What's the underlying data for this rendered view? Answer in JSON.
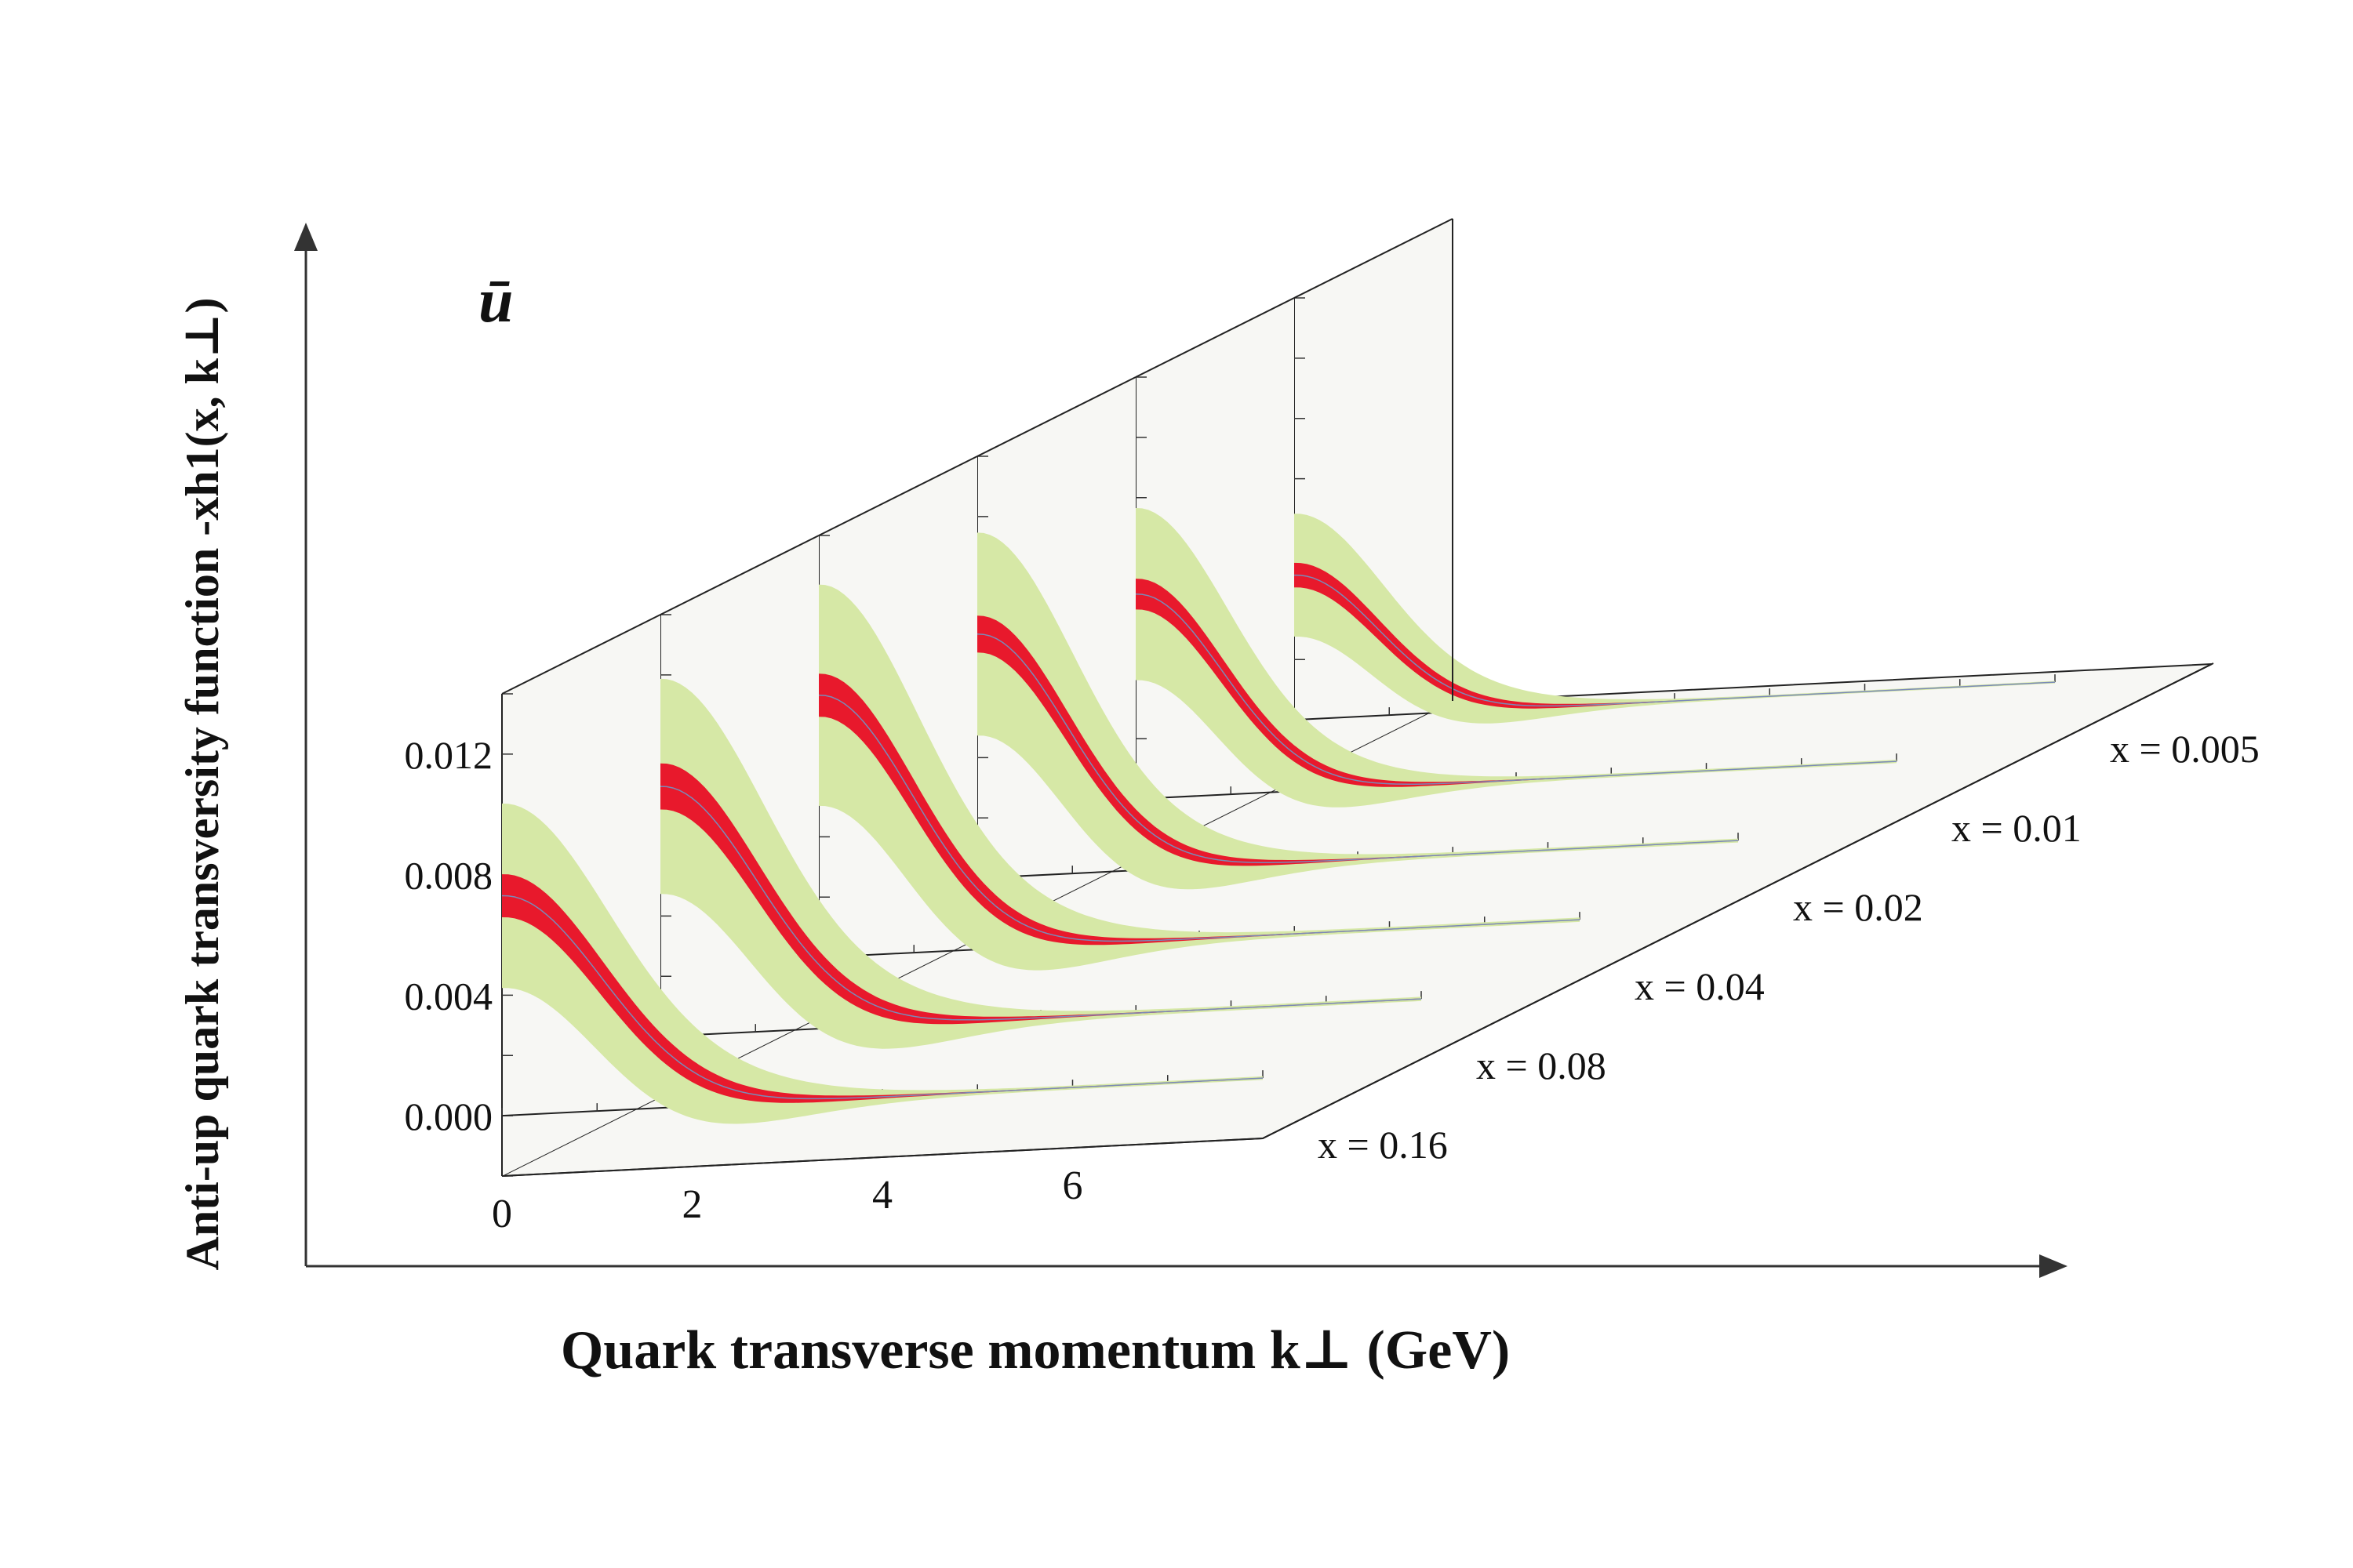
{
  "chart_data": {
    "type": "area",
    "subtitle": "ū",
    "xlabel": "Quark transverse momentum k⊥ (GeV)",
    "ylabel": "Anti-up quark transversity function -xh1(x, k⊥)",
    "x_ticks": [
      "0",
      "2",
      "4",
      "6"
    ],
    "x_range": [
      0,
      8
    ],
    "y_ticks": [
      "0.000",
      "0.004",
      "0.008",
      "0.012"
    ],
    "y_range": [
      -0.002,
      0.014
    ],
    "grid": false,
    "colors": {
      "central_band": "#e8192c",
      "uncertainty_band": "#d6e8a6",
      "center_line": "#7a8ab8",
      "panel": "#f7f7f4"
    },
    "series": [
      {
        "name": "x = 0.16",
        "peak": 0.0073,
        "red_half": 0.0007,
        "green_half": 0.003,
        "width": 1.5
      },
      {
        "name": "x = 0.08",
        "peak": 0.0083,
        "red_half": 0.00075,
        "green_half": 0.0035,
        "width": 1.45
      },
      {
        "name": "x = 0.04",
        "peak": 0.0087,
        "red_half": 0.0007,
        "green_half": 0.0036,
        "width": 1.4
      },
      {
        "name": "x = 0.02",
        "peak": 0.0081,
        "red_half": 0.0006,
        "green_half": 0.0033,
        "width": 1.35
      },
      {
        "name": "x = 0.01",
        "peak": 0.0068,
        "red_half": 0.0005,
        "green_half": 0.0028,
        "width": 1.3
      },
      {
        "name": "x = 0.005",
        "peak": 0.0048,
        "red_half": 0.0004,
        "green_half": 0.002,
        "width": 1.25
      }
    ]
  }
}
